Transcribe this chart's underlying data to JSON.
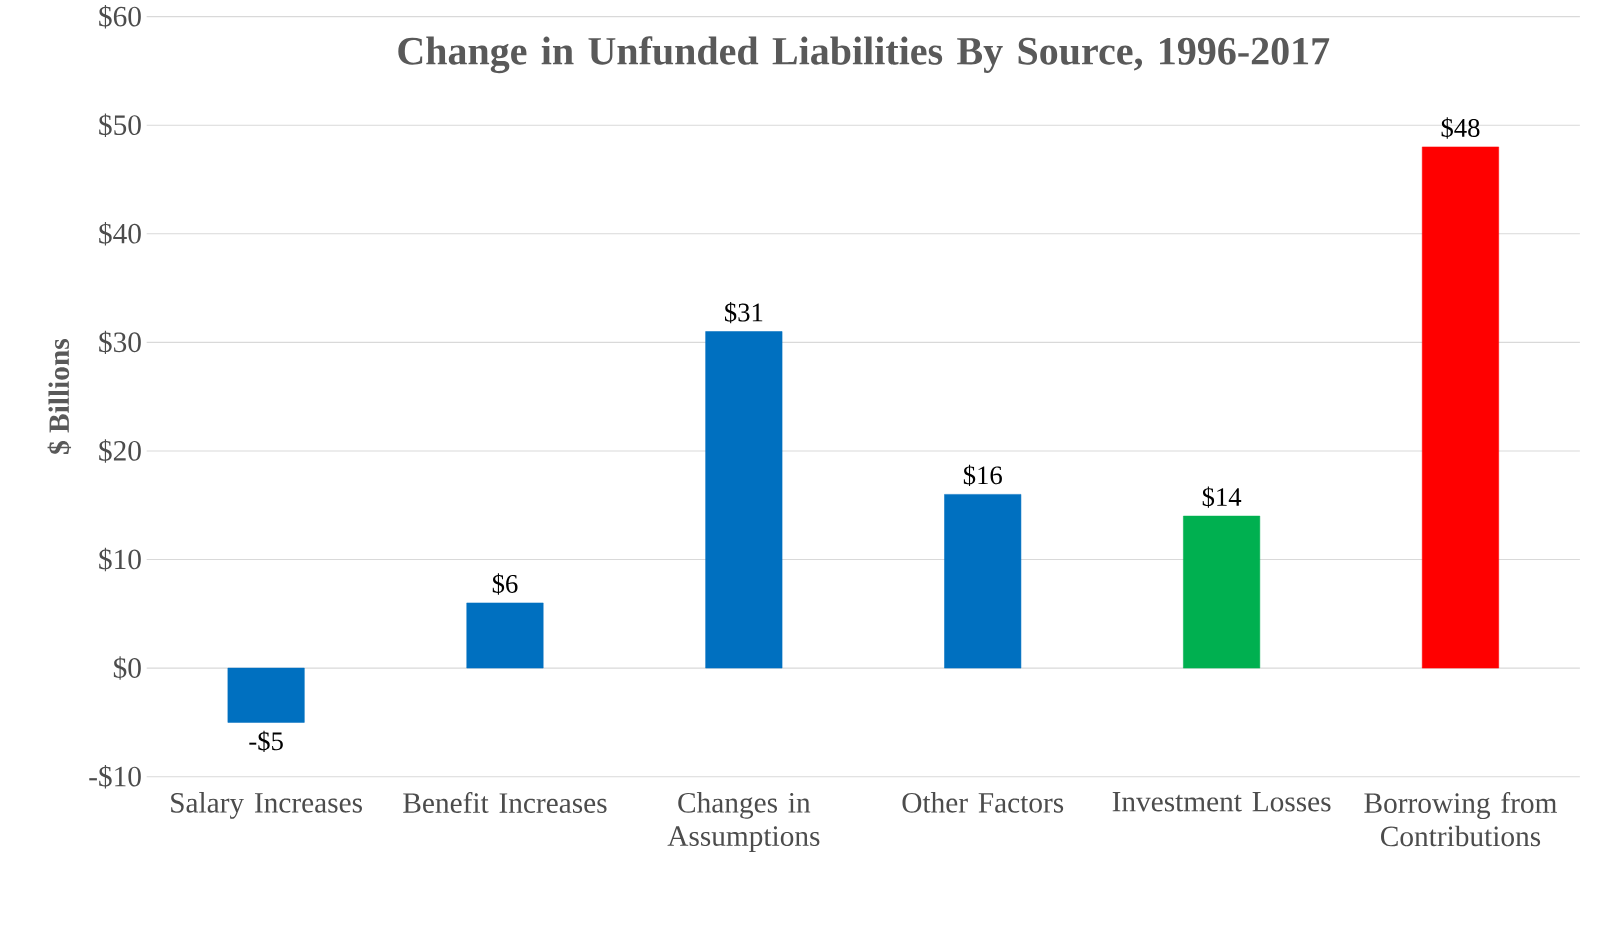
{
  "chart_data": {
    "type": "bar",
    "title": "Change in Unfunded Liabilities By Source, 1996-2017",
    "ylabel": "$ Billions",
    "categories": [
      "Salary Increases",
      "Benefit Increases",
      "Changes in Assumptions",
      "Other Factors",
      "Investment Losses",
      "Borrowing from Contributions"
    ],
    "values": [
      -5,
      6,
      31,
      16,
      14,
      48
    ],
    "colors": [
      "#0070c0",
      "#0070c0",
      "#0070c0",
      "#0070c0",
      "#00b050",
      "#ff0000"
    ],
    "value_labels": [
      "-$5",
      "$6",
      "$31",
      "$16",
      "$14",
      "$48"
    ],
    "ylim": [
      -10,
      60
    ],
    "yticks": [
      {
        "value": -10,
        "label": "-$10"
      },
      {
        "value": 0,
        "label": "$0"
      },
      {
        "value": 10,
        "label": "$10"
      },
      {
        "value": 20,
        "label": "$20"
      },
      {
        "value": 30,
        "label": "$30"
      },
      {
        "value": 40,
        "label": "$40"
      },
      {
        "value": 50,
        "label": "$50"
      },
      {
        "value": 60,
        "label": "$60"
      }
    ],
    "grid": "y"
  }
}
